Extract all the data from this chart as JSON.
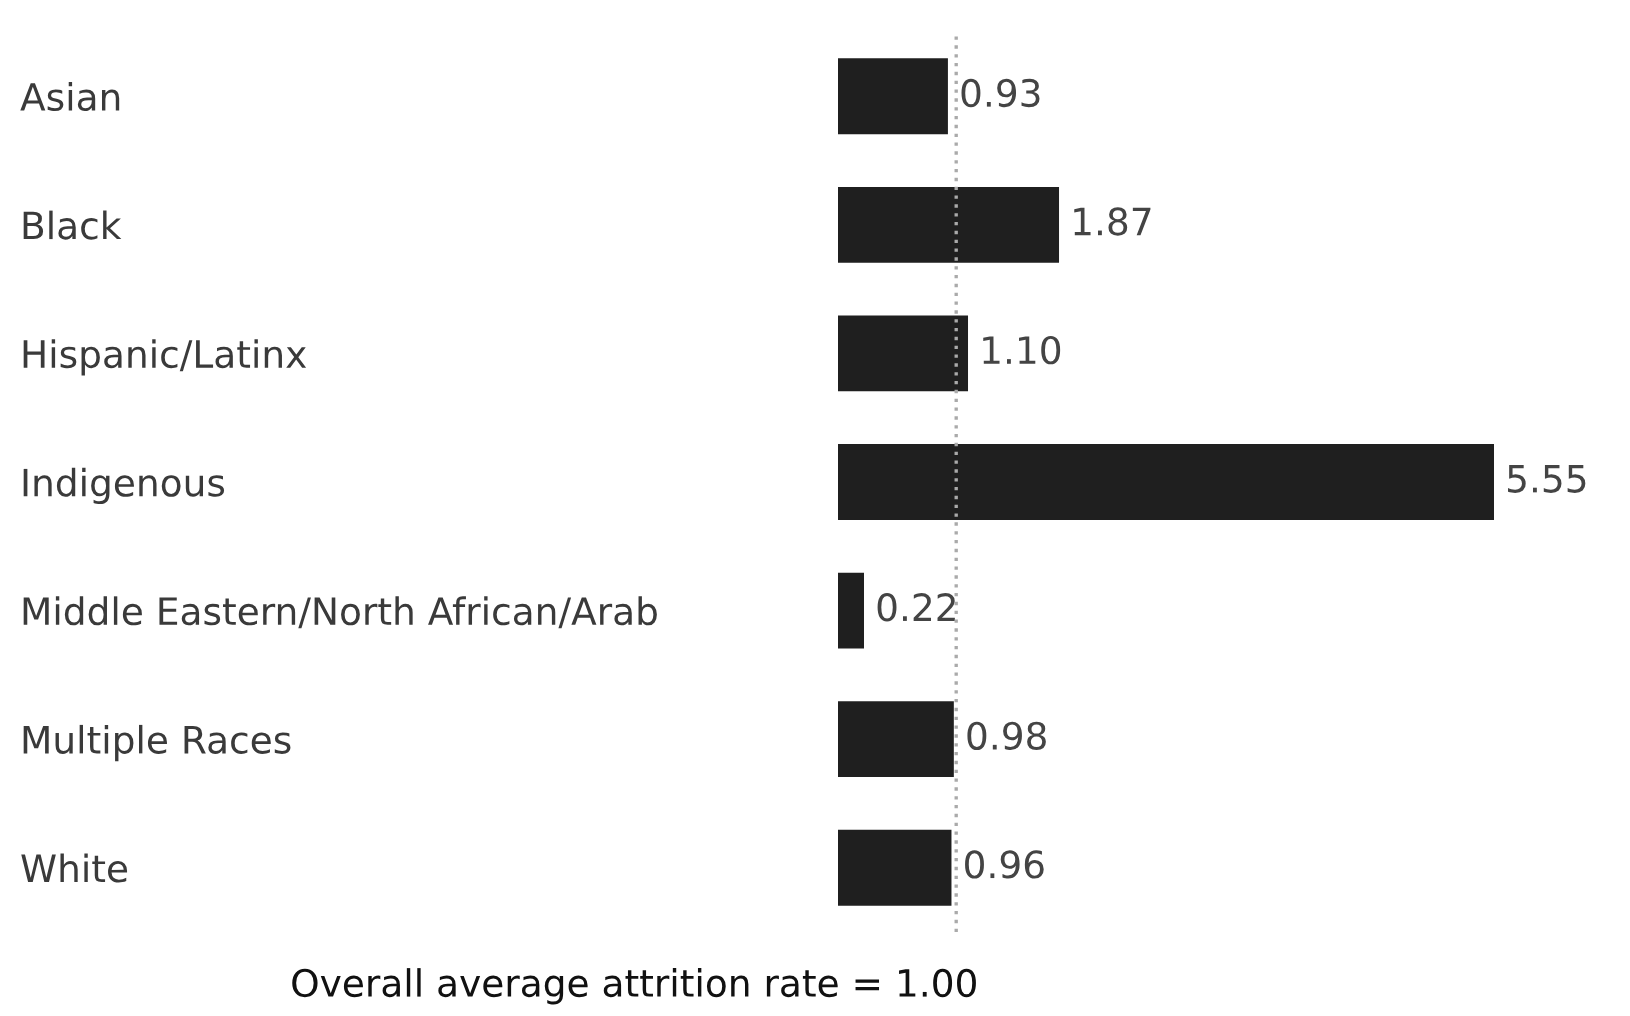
{
  "chart_data": {
    "type": "bar",
    "orientation": "horizontal",
    "categories": [
      "Asian",
      "Black",
      "Hispanic/Latinx",
      "Indigenous",
      "Middle Eastern/North African/Arab",
      "Multiple Races",
      "White"
    ],
    "values": [
      0.93,
      1.87,
      1.1,
      5.55,
      0.22,
      0.98,
      0.96
    ],
    "value_labels": [
      "0.93",
      "1.87",
      "1.10",
      "5.55",
      "0.22",
      "0.98",
      "0.96"
    ],
    "color": "#1f1f1f",
    "tick_labels": "y",
    "ref_lines": [
      {
        "axis": "x",
        "value": 1.0,
        "label": "Overall average attrition rate = 1.00",
        "color": "#aaaaaa",
        "line_style": "dotted"
      }
    ]
  }
}
